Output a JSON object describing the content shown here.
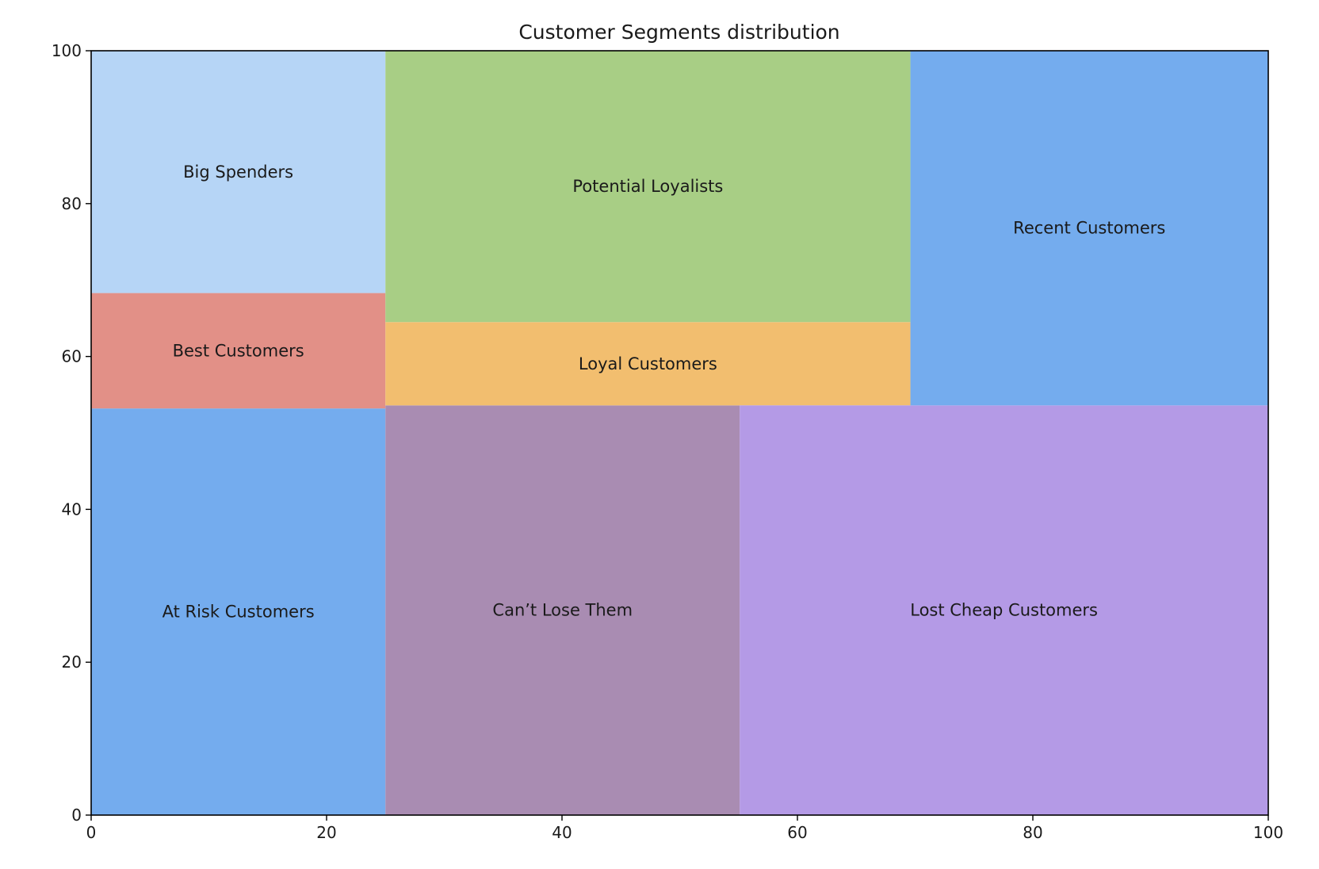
{
  "chart_data": {
    "type": "treemap",
    "title": "Customer Segments distribution",
    "xlabel": "",
    "ylabel": "",
    "xlim": [
      0,
      100
    ],
    "ylim": [
      0,
      100
    ],
    "xticks": [
      "0",
      "20",
      "40",
      "60",
      "80",
      "100"
    ],
    "yticks": [
      "0",
      "20",
      "40",
      "60",
      "80",
      "100"
    ],
    "grid": false,
    "legend": "none",
    "segments": [
      {
        "label": "At Risk Customers",
        "x0": 0,
        "x1": 25,
        "y0": 0,
        "y1": 53.2,
        "color": "#74acee"
      },
      {
        "label": "Best Customers",
        "x0": 0,
        "x1": 25,
        "y0": 53.2,
        "y1": 68.3,
        "color": "#e29087"
      },
      {
        "label": "Big Spenders",
        "x0": 0,
        "x1": 25,
        "y0": 68.3,
        "y1": 100,
        "color": "#b6d5f6"
      },
      {
        "label": "Can’t Lose Them",
        "x0": 25,
        "x1": 55.1,
        "y0": 0,
        "y1": 53.6,
        "color": "#a98cb2"
      },
      {
        "label": "Loyal Customers",
        "x0": 25,
        "x1": 69.6,
        "y0": 53.6,
        "y1": 64.5,
        "color": "#f2be6f"
      },
      {
        "label": "Potential Loyalists",
        "x0": 25,
        "x1": 69.6,
        "y0": 64.5,
        "y1": 100,
        "color": "#a8ce85"
      },
      {
        "label": "Lost Cheap Customers",
        "x0": 55.1,
        "x1": 100,
        "y0": 0,
        "y1": 53.6,
        "color": "#b49ae6"
      },
      {
        "label": "Recent Customers",
        "x0": 69.6,
        "x1": 100,
        "y0": 53.6,
        "y1": 100,
        "color": "#74acee"
      }
    ]
  }
}
